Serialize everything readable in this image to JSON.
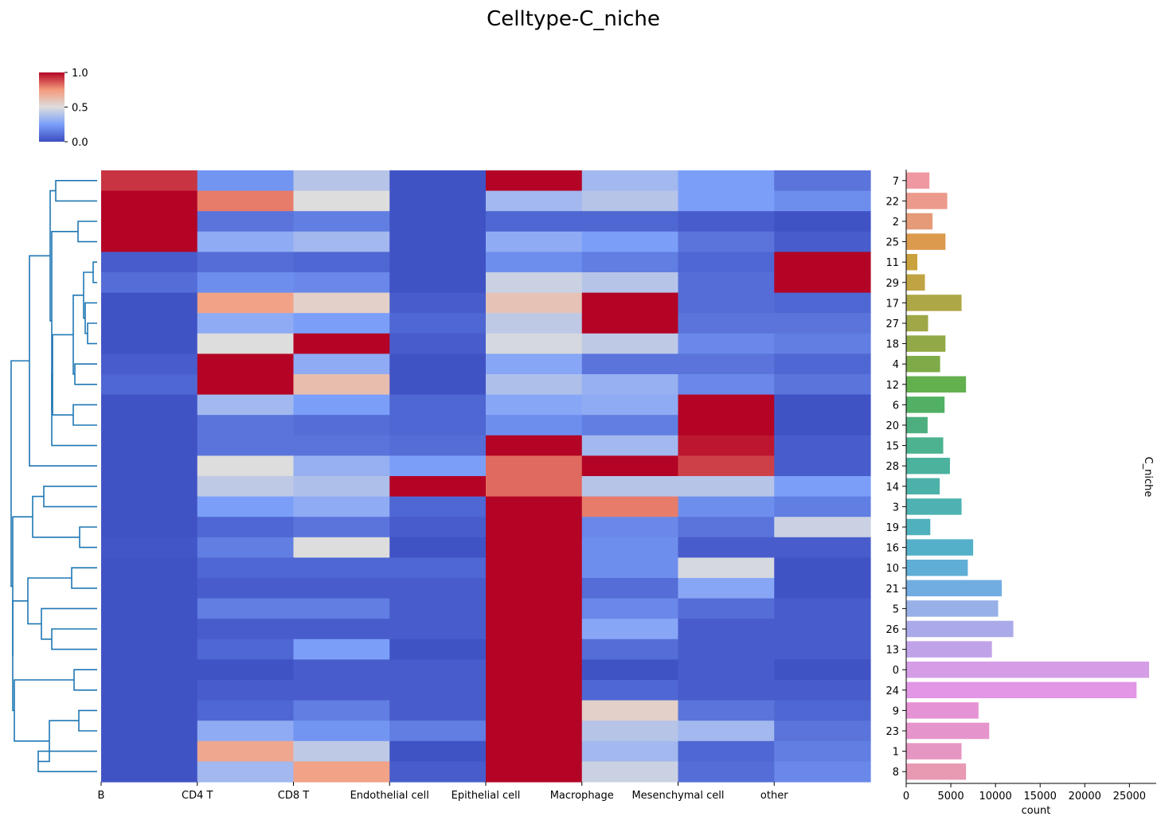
{
  "title": "Celltype-C_niche",
  "chart_data": {
    "type": "heatmap",
    "title": "Celltype-C_niche",
    "columns": [
      "B",
      "CD4 T",
      "CD8 T",
      "Endothelial cell",
      "Epithelial cell",
      "Macrophage",
      "Mesenchymal cell",
      "other"
    ],
    "rows": [
      "7",
      "22",
      "2",
      "25",
      "11",
      "29",
      "17",
      "27",
      "18",
      "4",
      "12",
      "6",
      "20",
      "15",
      "28",
      "14",
      "3",
      "19",
      "16",
      "10",
      "21",
      "5",
      "26",
      "13",
      "0",
      "24",
      "9",
      "23",
      "1",
      "8"
    ],
    "values": [
      [
        0.92,
        0.22,
        0.4,
        0.02,
        1.0,
        0.35,
        0.25,
        0.12
      ],
      [
        1.0,
        0.8,
        0.5,
        0.02,
        0.35,
        0.4,
        0.25,
        0.2
      ],
      [
        1.0,
        0.12,
        0.15,
        0.02,
        0.08,
        0.08,
        0.05,
        0.02
      ],
      [
        1.0,
        0.3,
        0.35,
        0.02,
        0.3,
        0.25,
        0.12,
        0.05
      ],
      [
        0.05,
        0.1,
        0.08,
        0.02,
        0.2,
        0.15,
        0.08,
        1.0
      ],
      [
        0.1,
        0.2,
        0.18,
        0.02,
        0.45,
        0.4,
        0.1,
        1.0
      ],
      [
        0.02,
        0.72,
        0.55,
        0.05,
        0.6,
        1.0,
        0.1,
        0.08
      ],
      [
        0.02,
        0.3,
        0.25,
        0.08,
        0.42,
        1.0,
        0.12,
        0.12
      ],
      [
        0.02,
        0.5,
        1.0,
        0.05,
        0.48,
        0.42,
        0.18,
        0.15
      ],
      [
        0.05,
        1.0,
        0.3,
        0.02,
        0.28,
        0.12,
        0.12,
        0.08
      ],
      [
        0.08,
        1.0,
        0.62,
        0.02,
        0.38,
        0.32,
        0.18,
        0.12
      ],
      [
        0.02,
        0.35,
        0.25,
        0.08,
        0.28,
        0.3,
        1.0,
        0.02
      ],
      [
        0.02,
        0.12,
        0.1,
        0.08,
        0.2,
        0.15,
        1.0,
        0.02
      ],
      [
        0.02,
        0.12,
        0.12,
        0.1,
        1.0,
        0.35,
        0.97,
        0.05
      ],
      [
        0.02,
        0.5,
        0.32,
        0.25,
        0.83,
        1.0,
        0.9,
        0.05
      ],
      [
        0.02,
        0.42,
        0.38,
        1.0,
        0.83,
        0.4,
        0.4,
        0.25
      ],
      [
        0.02,
        0.25,
        0.3,
        0.08,
        1.0,
        0.8,
        0.2,
        0.15
      ],
      [
        0.02,
        0.08,
        0.12,
        0.05,
        1.0,
        0.18,
        0.12,
        0.45
      ],
      [
        0.03,
        0.15,
        0.5,
        0.02,
        1.0,
        0.2,
        0.05,
        0.05
      ],
      [
        0.02,
        0.08,
        0.08,
        0.08,
        1.0,
        0.2,
        0.48,
        0.02
      ],
      [
        0.02,
        0.05,
        0.05,
        0.05,
        1.0,
        0.1,
        0.28,
        0.02
      ],
      [
        0.02,
        0.15,
        0.15,
        0.05,
        1.0,
        0.18,
        0.1,
        0.05
      ],
      [
        0.02,
        0.05,
        0.05,
        0.05,
        1.0,
        0.28,
        0.05,
        0.05
      ],
      [
        0.02,
        0.08,
        0.25,
        0.02,
        1.0,
        0.1,
        0.05,
        0.05
      ],
      [
        0.02,
        0.02,
        0.05,
        0.05,
        1.0,
        0.02,
        0.05,
        0.02
      ],
      [
        0.02,
        0.05,
        0.05,
        0.05,
        1.0,
        0.08,
        0.05,
        0.05
      ],
      [
        0.02,
        0.08,
        0.15,
        0.05,
        1.0,
        0.55,
        0.12,
        0.08
      ],
      [
        0.02,
        0.3,
        0.22,
        0.15,
        1.0,
        0.4,
        0.35,
        0.12
      ],
      [
        0.02,
        0.7,
        0.42,
        0.02,
        1.0,
        0.35,
        0.08,
        0.15
      ],
      [
        0.02,
        0.35,
        0.72,
        0.05,
        1.0,
        0.45,
        0.1,
        0.18
      ]
    ],
    "colorbar": {
      "range": [
        0.0,
        1.0
      ],
      "ticks": [
        "0.0",
        "0.5",
        "1.0"
      ],
      "colormap": "coolwarm"
    },
    "counts": {
      "type": "bar",
      "orientation": "horizontal",
      "categories": [
        "7",
        "22",
        "2",
        "25",
        "11",
        "29",
        "17",
        "27",
        "18",
        "4",
        "12",
        "6",
        "20",
        "15",
        "28",
        "14",
        "3",
        "19",
        "16",
        "10",
        "21",
        "5",
        "26",
        "13",
        "0",
        "24",
        "9",
        "23",
        "1",
        "8"
      ],
      "values": [
        2600,
        4600,
        2950,
        4400,
        1250,
        2100,
        6200,
        2450,
        4400,
        3800,
        6700,
        4300,
        2400,
        4150,
        4900,
        3750,
        6200,
        2700,
        7500,
        6900,
        10700,
        10300,
        12000,
        9600,
        27200,
        25800,
        8100,
        9300,
        6200,
        6700
      ],
      "colors": [
        "#ef98a1",
        "#ec9a8c",
        "#e59a78",
        "#dc9a4d",
        "#c9a23d",
        "#c0a444",
        "#aea745",
        "#9fa746",
        "#91a946",
        "#7eab48",
        "#63b04e",
        "#51b063",
        "#4daf7f",
        "#4db28f",
        "#4bb29e",
        "#4cb1a9",
        "#4db2b1",
        "#4fb1bc",
        "#54b0c9",
        "#5eaed6",
        "#72ade2",
        "#97b0e8",
        "#abaae9",
        "#c0a2e9",
        "#d59de6",
        "#e196e6",
        "#e593d5",
        "#e694cc",
        "#e696c2",
        "#e89ab2"
      ],
      "xlabel": "count",
      "ylabel": "C_niche",
      "xticks": [
        0,
        5000,
        10000,
        15000,
        20000,
        25000
      ],
      "xlim": [
        0,
        28000
      ]
    },
    "dendrogram": {
      "side": "left",
      "color": "#1f77b4"
    }
  }
}
